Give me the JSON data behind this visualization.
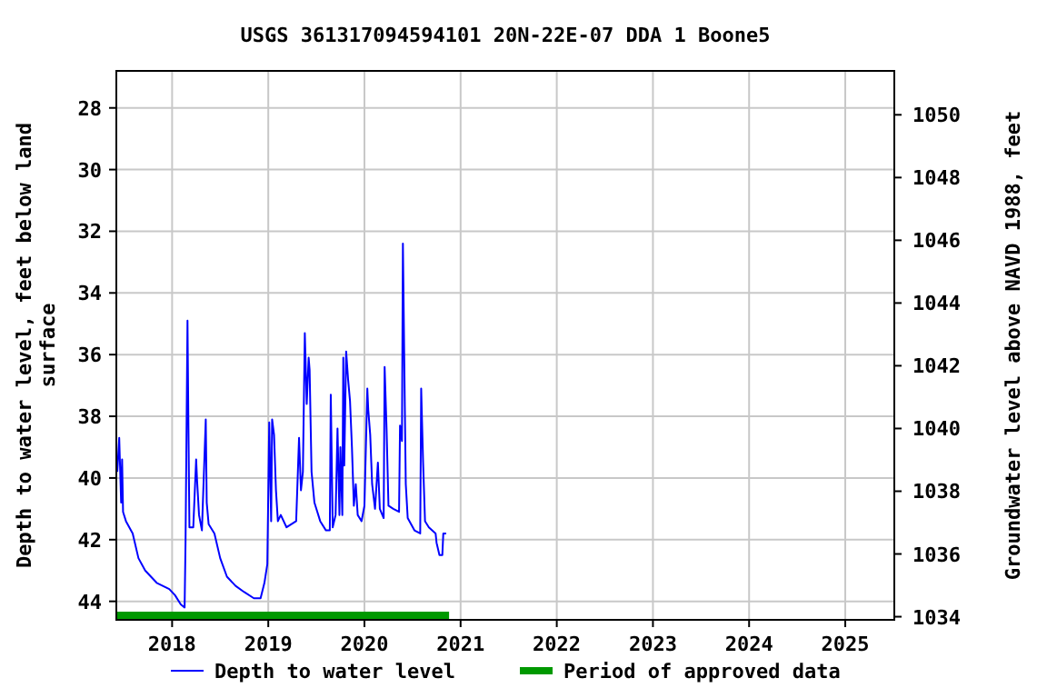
{
  "chart_data": {
    "type": "line",
    "title": "USGS 361317094594101 20N-22E-07 DDA 1 Boone5",
    "ylabel": "Depth to water level, feet below land surface",
    "y2label": "Groundwater level above NAVD 1988, feet",
    "xlim": [
      2017.42,
      2025.51
    ],
    "xticks": [
      2018,
      2019,
      2020,
      2021,
      2022,
      2023,
      2024,
      2025
    ],
    "ylim": [
      44.6,
      26.8
    ],
    "yticks": [
      28,
      30,
      32,
      34,
      36,
      38,
      40,
      42,
      44
    ],
    "y2lim": [
      1033.9,
      1051.4
    ],
    "y2ticks": [
      1034,
      1036,
      1038,
      1040,
      1042,
      1044,
      1046,
      1048,
      1050
    ],
    "grid": true,
    "legend": "bottom",
    "marker": "none",
    "line_style": "solid",
    "series": [
      {
        "name": "Depth to water level",
        "color": "#0000ff",
        "x": [
          2017.43,
          2017.45,
          2017.47,
          2017.48,
          2017.49,
          2017.52,
          2017.59,
          2017.65,
          2017.72,
          2017.84,
          2017.97,
          2018.03,
          2018.09,
          2018.13,
          2018.14,
          2018.16,
          2018.17,
          2018.18,
          2018.22,
          2018.25,
          2018.26,
          2018.28,
          2018.31,
          2018.35,
          2018.36,
          2018.38,
          2018.44,
          2018.5,
          2018.57,
          2018.66,
          2018.75,
          2018.85,
          2018.92,
          2018.96,
          2018.99,
          2019.01,
          2019.03,
          2019.04,
          2019.06,
          2019.08,
          2019.1,
          2019.13,
          2019.19,
          2019.29,
          2019.32,
          2019.34,
          2019.36,
          2019.38,
          2019.4,
          2019.42,
          2019.43,
          2019.45,
          2019.48,
          2019.54,
          2019.6,
          2019.64,
          2019.65,
          2019.67,
          2019.7,
          2019.72,
          2019.74,
          2019.75,
          2019.77,
          2019.78,
          2019.79,
          2019.81,
          2019.83,
          2019.85,
          2019.87,
          2019.89,
          2019.91,
          2019.93,
          2019.97,
          2020.0,
          2020.03,
          2020.04,
          2020.06,
          2020.08,
          2020.11,
          2020.14,
          2020.16,
          2020.2,
          2020.21,
          2020.23,
          2020.25,
          2020.3,
          2020.36,
          2020.37,
          2020.39,
          2020.4,
          2020.42,
          2020.43,
          2020.45,
          2020.52,
          2020.58,
          2020.59,
          2020.61,
          2020.63,
          2020.67,
          2020.74,
          2020.75,
          2020.78,
          2020.81,
          2020.82,
          2020.85
        ],
        "values": [
          39.8,
          38.7,
          40.8,
          39.4,
          41.1,
          41.4,
          41.8,
          42.6,
          43.0,
          43.4,
          43.6,
          43.8,
          44.1,
          44.2,
          42.0,
          34.9,
          38.4,
          41.6,
          41.6,
          39.4,
          40.1,
          41.2,
          41.7,
          38.1,
          40.8,
          41.5,
          41.8,
          42.6,
          43.2,
          43.5,
          43.7,
          43.9,
          43.9,
          43.4,
          42.8,
          38.2,
          41.4,
          38.1,
          38.6,
          40.4,
          41.4,
          41.2,
          41.6,
          41.4,
          38.7,
          40.4,
          39.8,
          35.3,
          37.6,
          36.1,
          36.5,
          39.8,
          40.8,
          41.4,
          41.7,
          41.7,
          37.3,
          41.6,
          41.2,
          38.4,
          41.2,
          39.0,
          41.2,
          36.1,
          39.6,
          35.9,
          36.8,
          37.5,
          39.0,
          40.9,
          40.2,
          41.2,
          41.4,
          40.9,
          37.1,
          37.8,
          38.6,
          40.2,
          41.0,
          39.5,
          41.0,
          41.3,
          36.4,
          38.4,
          40.9,
          41.0,
          41.1,
          38.3,
          38.8,
          32.4,
          37.7,
          40.2,
          41.3,
          41.7,
          41.8,
          37.1,
          39.5,
          41.4,
          41.6,
          41.8,
          42.1,
          42.5,
          42.5,
          41.8,
          41.8
        ]
      },
      {
        "name": "Period of approved data",
        "color": "#009900",
        "x": [
          2017.42,
          2020.88
        ],
        "values": [
          44.45,
          44.45
        ]
      }
    ]
  }
}
